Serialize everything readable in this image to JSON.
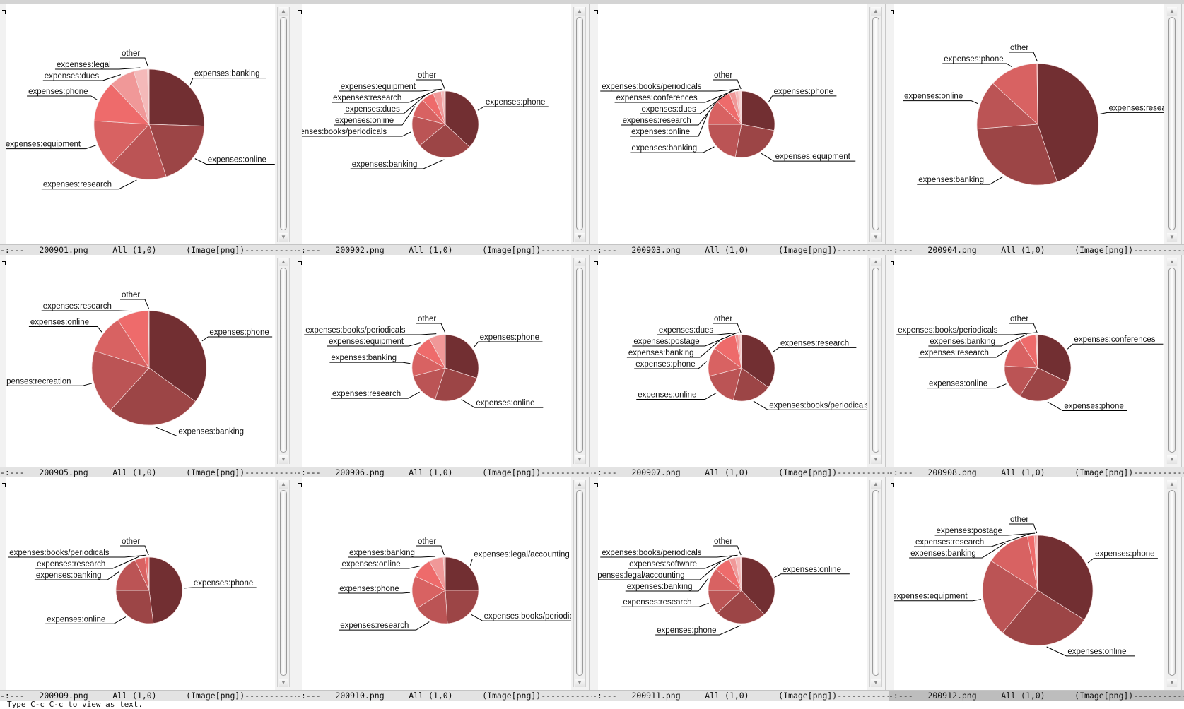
{
  "echo_area": "Type C-c C-c to view as text.",
  "windows": [
    {
      "status": "-:---",
      "buffer": "200901.png",
      "position": "All (1,0)",
      "mode": "(Image[png])",
      "fill": "----------------"
    },
    {
      "status": "-:---",
      "buffer": "200902.png",
      "position": "All (1,0)",
      "mode": "(Image[png])",
      "fill": "----------------"
    },
    {
      "status": "-:---",
      "buffer": "200903.png",
      "position": "All (1,0)",
      "mode": "(Image[png])",
      "fill": "----------------"
    },
    {
      "status": "-:---",
      "buffer": "200904.png",
      "position": "All (1,0)",
      "mode": "(Image[png])",
      "fill": "----------------"
    },
    {
      "status": "-:---",
      "buffer": "200905.png",
      "position": "All (1,0)",
      "mode": "(Image[png])",
      "fill": "----------------"
    },
    {
      "status": "-:---",
      "buffer": "200906.png",
      "position": "All (1,0)",
      "mode": "(Image[png])",
      "fill": "----------------"
    },
    {
      "status": "-:---",
      "buffer": "200907.png",
      "position": "All (1,0)",
      "mode": "(Image[png])",
      "fill": "----------------"
    },
    {
      "status": "-:---",
      "buffer": "200908.png",
      "position": "All (1,0)",
      "mode": "(Image[png])",
      "fill": "----------------"
    },
    {
      "status": "-:---",
      "buffer": "200909.png",
      "position": "All (1,0)",
      "mode": "(Image[png])",
      "fill": "----------------"
    },
    {
      "status": "-:---",
      "buffer": "200910.png",
      "position": "All (1,0)",
      "mode": "(Image[png])",
      "fill": "----------------"
    },
    {
      "status": "-:---",
      "buffer": "200911.png",
      "position": "All (1,0)",
      "mode": "(Image[png])",
      "fill": "----------------"
    },
    {
      "status": "-:---",
      "buffer": "200912.png",
      "position": "All (1,0)",
      "mode": "(Image[png])",
      "fill": "----------------",
      "active": true
    }
  ],
  "colors": {
    "slice_palette": [
      "#722f32",
      "#9c4546",
      "#bb5455",
      "#d86262",
      "#ee6b6b",
      "#f09898",
      "#f4b9b9",
      "#f8d0d0",
      "#fbe2e2"
    ],
    "active_modeline": "#bdbdbd",
    "modeline": "#e3e3e3"
  },
  "chart_data": [
    {
      "type": "pie",
      "size": "large",
      "labels": [
        "expenses:banking",
        "expenses:online",
        "expenses:research",
        "expenses:equipment",
        "expenses:phone",
        "expenses:dues",
        "expenses:legal",
        "other"
      ],
      "values": [
        0.255,
        0.195,
        0.17,
        0.14,
        0.12,
        0.075,
        0.04,
        0.005
      ]
    },
    {
      "type": "pie",
      "size": "small",
      "labels": [
        "expenses:phone",
        "expenses:banking",
        "expenses:books/periodicals",
        "expenses:online",
        "expenses:dues",
        "expenses:research",
        "expenses:equipment",
        "other"
      ],
      "values": [
        0.37,
        0.27,
        0.15,
        0.09,
        0.06,
        0.04,
        0.015,
        0.005
      ]
    },
    {
      "type": "pie",
      "size": "small",
      "labels": [
        "expenses:phone",
        "expenses:equipment",
        "expenses:banking",
        "expenses:online",
        "expenses:research",
        "expenses:dues",
        "expenses:conferences",
        "expenses:books/periodicals",
        "other"
      ],
      "values": [
        0.28,
        0.25,
        0.22,
        0.12,
        0.07,
        0.03,
        0.015,
        0.01,
        0.005
      ]
    },
    {
      "type": "pie",
      "size": "large",
      "labels": [
        "expenses:research",
        "expenses:banking",
        "expenses:online",
        "expenses:phone",
        "other"
      ],
      "values": [
        0.448,
        0.29,
        0.13,
        0.13,
        0.002
      ]
    },
    {
      "type": "pie",
      "size": "large",
      "labels": [
        "expenses:phone",
        "expenses:banking",
        "expenses:recreation",
        "expenses:online",
        "expenses:research",
        "other"
      ],
      "values": [
        0.35,
        0.268,
        0.18,
        0.11,
        0.09,
        0.002
      ]
    },
    {
      "type": "pie",
      "size": "small",
      "labels": [
        "expenses:phone",
        "expenses:online",
        "expenses:research",
        "expenses:banking",
        "expenses:equipment",
        "expenses:books/periodicals",
        "other"
      ],
      "values": [
        0.3,
        0.25,
        0.16,
        0.12,
        0.09,
        0.078,
        0.002
      ]
    },
    {
      "type": "pie",
      "size": "small",
      "labels": [
        "expenses:research",
        "expenses:books/periodicals",
        "expenses:online",
        "expenses:phone",
        "expenses:banking",
        "expenses:postage",
        "expenses:dues",
        "other"
      ],
      "values": [
        0.35,
        0.19,
        0.17,
        0.14,
        0.12,
        0.015,
        0.01,
        0.005
      ]
    },
    {
      "type": "pie",
      "size": "small",
      "labels": [
        "expenses:conferences",
        "expenses:phone",
        "expenses:online",
        "expenses:research",
        "expenses:banking",
        "expenses:books/periodicals",
        "other"
      ],
      "values": [
        0.32,
        0.27,
        0.17,
        0.15,
        0.08,
        0.005,
        0.005
      ]
    },
    {
      "type": "pie",
      "size": "small",
      "labels": [
        "expenses:phone",
        "expenses:online",
        "expenses:banking",
        "expenses:research",
        "expenses:books/periodicals",
        "other"
      ],
      "values": [
        0.48,
        0.27,
        0.18,
        0.05,
        0.015,
        0.005
      ]
    },
    {
      "type": "pie",
      "size": "small",
      "labels": [
        "expenses:legal/accounting",
        "expenses:books/periodicals",
        "expenses:research",
        "expenses:phone",
        "expenses:online",
        "expenses:banking",
        "other"
      ],
      "values": [
        0.25,
        0.24,
        0.17,
        0.16,
        0.1,
        0.07,
        0.01
      ]
    },
    {
      "type": "pie",
      "size": "small",
      "labels": [
        "expenses:online",
        "expenses:phone",
        "expenses:research",
        "expenses:banking",
        "expenses:legal/accounting",
        "expenses:software",
        "expenses:books/periodicals",
        "other"
      ],
      "values": [
        0.38,
        0.25,
        0.12,
        0.11,
        0.08,
        0.03,
        0.025,
        0.005
      ]
    },
    {
      "type": "pie",
      "size": "large",
      "labels": [
        "expenses:phone",
        "expenses:online",
        "expenses:equipment",
        "expenses:banking",
        "expenses:research",
        "expenses:postage",
        "other"
      ],
      "values": [
        0.34,
        0.27,
        0.23,
        0.13,
        0.02,
        0.005,
        0.005
      ]
    }
  ]
}
